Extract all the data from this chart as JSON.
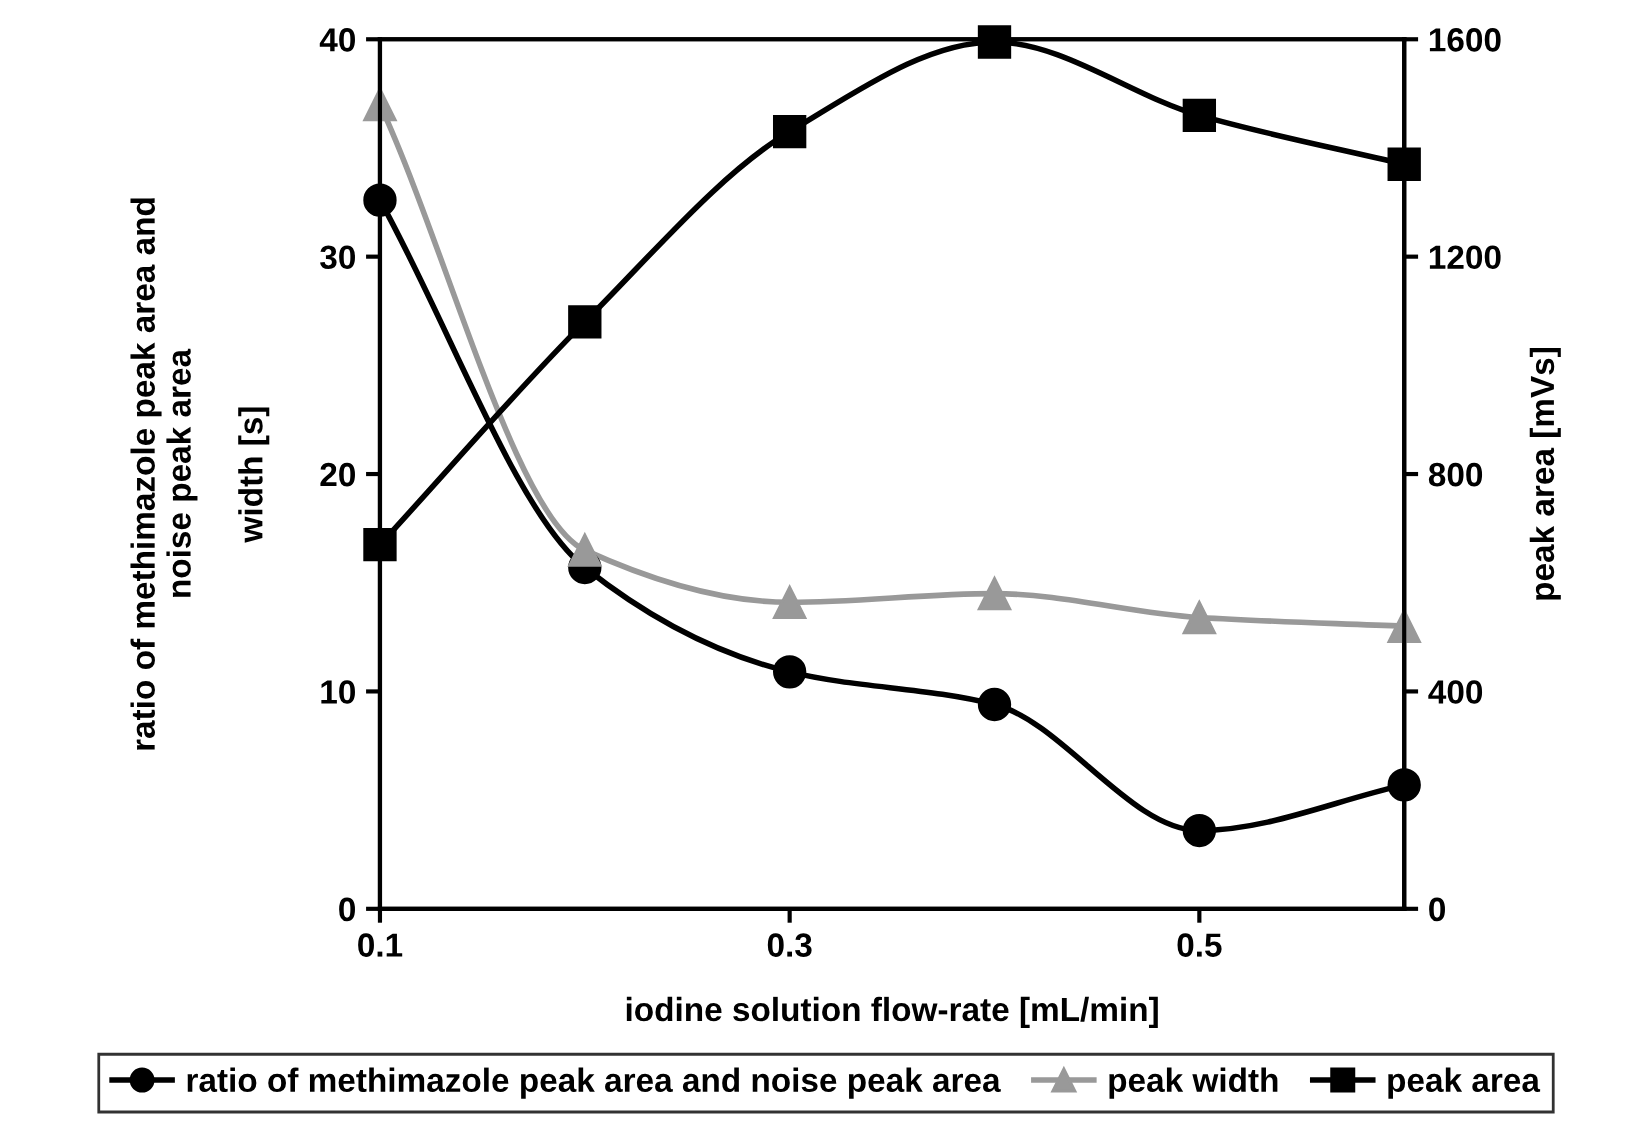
{
  "chart_data": {
    "type": "line",
    "xlabel": "iodine solution flow-rate [mL/min]",
    "ylabel": "ratio of methimazole peak area and\nnoise peak area\n\nwidth [s]",
    "y2label": "peak area [mVs]",
    "x": [
      0.1,
      0.2,
      0.3,
      0.4,
      0.5,
      0.6
    ],
    "xlim": [
      0.1,
      0.6
    ],
    "xticks": [
      0.1,
      0.3,
      0.5
    ],
    "ylim": [
      0,
      40
    ],
    "yticks": [
      0,
      10,
      20,
      30,
      40
    ],
    "y2lim": [
      0,
      1600
    ],
    "y2ticks": [
      0,
      400,
      800,
      1200,
      1600
    ],
    "grid": false,
    "legend": "bottom",
    "line_style": "solid",
    "series": [
      {
        "name": "ratio of methimazole peak area and noise peak area",
        "color": "#000000",
        "marker": "circle",
        "values": [
          32.6,
          15.7,
          10.9,
          9.4,
          3.6,
          5.7
        ]
      },
      {
        "name": "peak width",
        "color": "#999999",
        "marker": "triangle",
        "values": [
          37,
          16.5,
          14.1,
          14.5,
          13.4,
          13.0
        ]
      },
      {
        "name": "peak area",
        "color": "#000000",
        "marker": "square",
        "axis": "y2",
        "values": [
          670,
          1080,
          1430,
          1595,
          1460,
          1370
        ]
      }
    ]
  }
}
